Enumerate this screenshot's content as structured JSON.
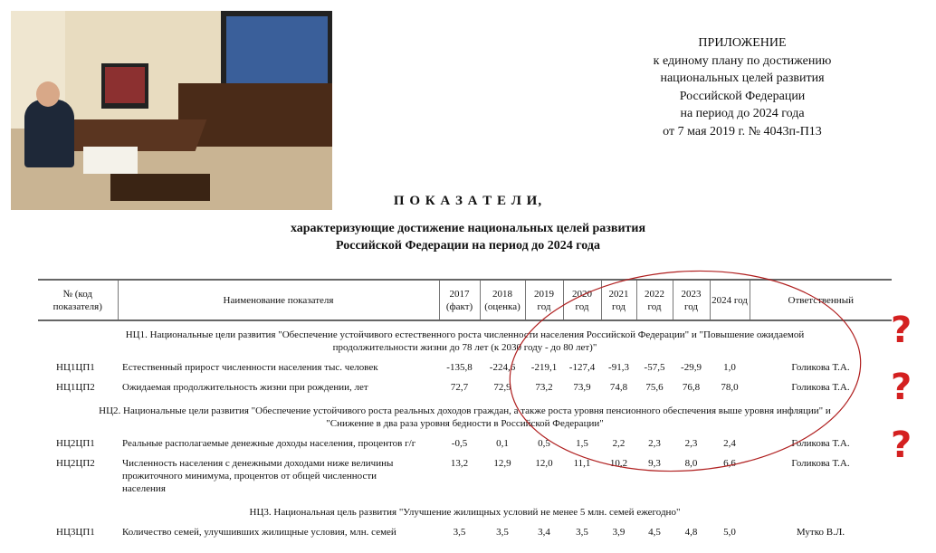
{
  "photo": {
    "description_icon": "video-conference-photo"
  },
  "appendix": {
    "lines": [
      "ПРИЛОЖЕНИЕ",
      "к единому плану по достижению",
      "национальных целей развития",
      "Российской Федерации",
      "на период до 2024 года",
      "от 7 мая 2019 г. № 4043п-П13"
    ]
  },
  "title": "П О К А З А Т Е Л И,",
  "subtitle": [
    "характеризующие достижение национальных целей развития",
    "Российской Федерации на период до 2024 года"
  ],
  "table": {
    "headers": [
      "№ (код показателя)",
      "Наименование показателя",
      "2017 (факт)",
      "2018 (оценка)",
      "2019 год",
      "2020 год",
      "2021 год",
      "2022 год",
      "2023 год",
      "2024 год",
      "Ответственный"
    ],
    "sections": [
      {
        "title": "НЦ1. Национальные цели развития \"Обеспечение устойчивого естественного роста численности населения Российской Федерации\" и \"Повышение ожидаемой продолжительности жизни до 78 лет (к 2030 году - до 80 лет)\"",
        "rows": [
          {
            "code": "НЦ1ЦП1",
            "name": "Естественный прирост численности населения тыс. человек",
            "values": [
              "-135,8",
              "-224,6",
              "-219,1",
              "-127,4",
              "-91,3",
              "-57,5",
              "-29,9",
              "1,0"
            ],
            "responsible": "Голикова Т.А."
          },
          {
            "code": "НЦ1ЦП2",
            "name": "Ожидаемая продолжительность жизни при рождении, лет",
            "values": [
              "72,7",
              "72,9",
              "73,2",
              "73,9",
              "74,8",
              "75,6",
              "76,8",
              "78,0"
            ],
            "responsible": "Голикова Т.А."
          }
        ]
      },
      {
        "title": "НЦ2. Национальные цели развития \"Обеспечение устойчивого роста реальных доходов граждан, а также роста уровня пенсионного обеспечения выше уровня инфляции\" и \"Снижение в два раза уровня бедности в Российской Федерации\"",
        "rows": [
          {
            "code": "НЦ2ЦП1",
            "name": "Реальные располагаемые денежные доходы населения, процентов г/г",
            "values": [
              "-0,5",
              "0,1",
              "0,5",
              "1,5",
              "2,2",
              "2,3",
              "2,3",
              "2,4"
            ],
            "responsible": "Голикова Т.А."
          },
          {
            "code": "НЦ2ЦП2",
            "name": "Численность населения с денежными доходами ниже величины прожиточного минимума, процентов от общей численности населения",
            "values": [
              "13,2",
              "12,9",
              "12,0",
              "11,1",
              "10,2",
              "9,3",
              "8,0",
              "6,6"
            ],
            "responsible": "Голикова Т.А."
          }
        ]
      },
      {
        "title": "НЦ3. Национальная цель развития \"Улучшение жилищных условий не менее 5 млн. семей ежегодно\"",
        "rows": [
          {
            "code": "НЦ3ЦП1",
            "name": "Количество семей, улучшивших жилищные условия, млн. семей",
            "values": [
              "3,5",
              "3,5",
              "3,4",
              "3,5",
              "3,9",
              "4,5",
              "4,8",
              "5,0"
            ],
            "responsible": "Мутко В.Л."
          }
        ]
      }
    ]
  },
  "annotations": {
    "ellipse_color": "#b02020",
    "question_mark": "?",
    "question_color": "#d42020"
  }
}
